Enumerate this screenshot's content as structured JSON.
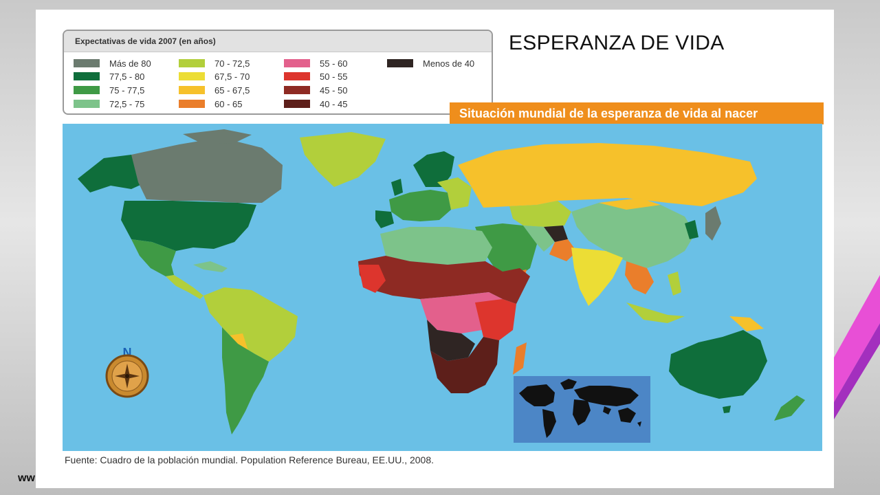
{
  "heading": "ESPERANZA DE VIDA",
  "legend": {
    "title": "Expectativas de vida 2007 (en años)",
    "items": [
      {
        "label": "Más de 80",
        "color": "#6b7b6f"
      },
      {
        "label": "77,5 - 80",
        "color": "#0f6e3b"
      },
      {
        "label": "75 - 77,5",
        "color": "#3f9a45"
      },
      {
        "label": "72,5 - 75",
        "color": "#7dc38a"
      },
      {
        "label": "70 - 72,5",
        "color": "#b2cf3b"
      },
      {
        "label": "67,5 - 70",
        "color": "#ecdd35"
      },
      {
        "label": "65 - 67,5",
        "color": "#f6c12b"
      },
      {
        "label": "60 - 65",
        "color": "#ea7e2b"
      },
      {
        "label": "55 - 60",
        "color": "#e3608c"
      },
      {
        "label": "50 - 55",
        "color": "#dd352d"
      },
      {
        "label": "45 - 50",
        "color": "#8e2a23"
      },
      {
        "label": "40 - 45",
        "color": "#5d1f1a"
      },
      {
        "label": "Menos de 40",
        "color": "#2f2523"
      }
    ]
  },
  "map": {
    "title": "Situación mundial de la esperanza de vida al nacer",
    "compass_label": "N",
    "ocean_color": "#6ac0e6",
    "inset_ocean_color": "#4c86c6"
  },
  "source": "Fuente: Cuadro de la población mundial. Population Reference Bureau, EE.UU., 2008.",
  "footer_fragment": "ww"
}
